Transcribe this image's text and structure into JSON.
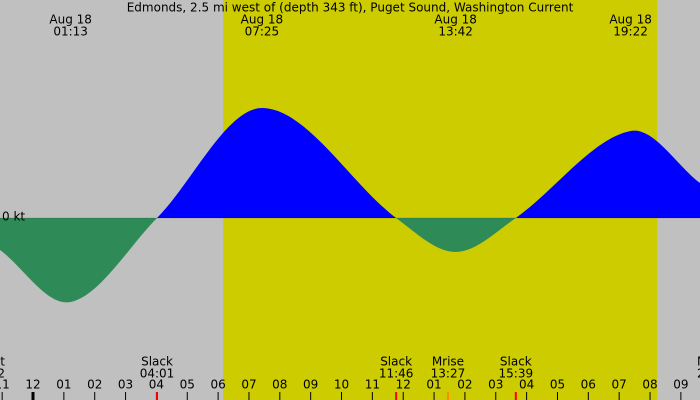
{
  "chart_data": {
    "type": "area",
    "title": "Edmonds, 2.5 mi west of (depth 343 ft), Puget Sound, Washington Current",
    "x": [
      -1.07,
      1.22,
      4.02,
      7.42,
      11.77,
      13.7,
      15.65,
      19.37,
      21.62
    ],
    "values": [
      -0.32,
      -0.84,
      0,
      1.1,
      0,
      -0.34,
      0,
      0.87,
      0.35
    ],
    "flood_color": "#0000ff",
    "ebb_color": "#2e8b57",
    "xlim": [
      -1.07,
      21.62
    ],
    "ylim": [
      -1.82,
      2.18
    ],
    "yticks": [
      {
        "value": 0,
        "label": "0 kt"
      }
    ],
    "xticks": [
      {
        "value": -1,
        "label": "11"
      },
      {
        "value": 0,
        "label": "12"
      },
      {
        "value": 1,
        "label": "01"
      },
      {
        "value": 2,
        "label": "02"
      },
      {
        "value": 3,
        "label": "03"
      },
      {
        "value": 4,
        "label": "04"
      },
      {
        "value": 5,
        "label": "05"
      },
      {
        "value": 6,
        "label": "06"
      },
      {
        "value": 7,
        "label": "07"
      },
      {
        "value": 8,
        "label": "08"
      },
      {
        "value": 9,
        "label": "09"
      },
      {
        "value": 10,
        "label": "10"
      },
      {
        "value": 11,
        "label": "11"
      },
      {
        "value": 12,
        "label": "12"
      },
      {
        "value": 13,
        "label": "01"
      },
      {
        "value": 14,
        "label": "02"
      },
      {
        "value": 15,
        "label": "03"
      },
      {
        "value": 16,
        "label": "04"
      },
      {
        "value": 17,
        "label": "05"
      },
      {
        "value": 18,
        "label": "06"
      },
      {
        "value": 19,
        "label": "07"
      },
      {
        "value": 20,
        "label": "08"
      },
      {
        "value": 21,
        "label": "09"
      }
    ],
    "daylight": [
      6.16,
      20.23
    ],
    "daylight_color": "#cccc00",
    "night_color": "#c0c0c0",
    "extrema": [
      {
        "x": 1.22,
        "date": "Aug 18",
        "time": "01:13"
      },
      {
        "x": 7.42,
        "date": "Aug 18",
        "time": "07:25"
      },
      {
        "x": 13.7,
        "date": "Aug 18",
        "time": "13:42"
      },
      {
        "x": 19.37,
        "date": "Aug 18",
        "time": "19:22"
      }
    ],
    "events": [
      {
        "x": 4.02,
        "label": "Slack",
        "time": "04:01",
        "color": "#ff0000"
      },
      {
        "x": 11.77,
        "label": "Slack",
        "time": "11:46",
        "color": "#ff0000"
      },
      {
        "x": 13.45,
        "label": "Mrise",
        "time": "13:27",
        "color": "#ff8c00"
      },
      {
        "x": 15.65,
        "label": "Slack",
        "time": "15:39",
        "color": "#ff0000"
      }
    ],
    "edge_labels": {
      "left": [
        "t",
        "2"
      ],
      "right": [
        "M",
        "2"
      ]
    }
  }
}
